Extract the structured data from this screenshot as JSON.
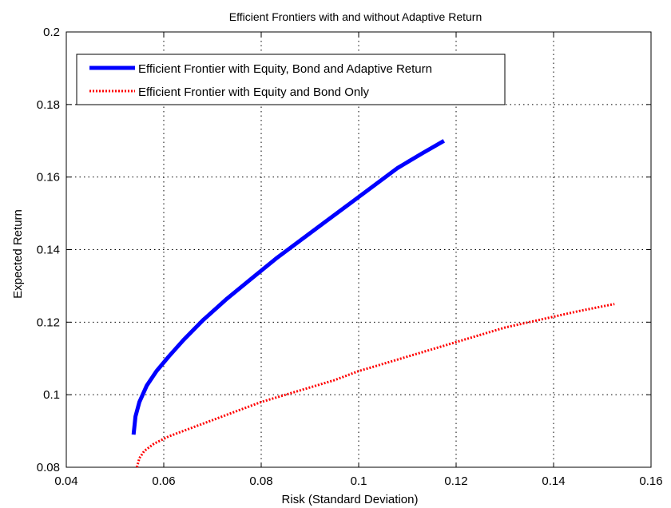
{
  "chart_data": {
    "type": "line",
    "title": "Efficient Frontiers with and without Adaptive Return",
    "xlabel": "Risk (Standard Deviation)",
    "ylabel": "Expected Return",
    "xlim": [
      0.04,
      0.16
    ],
    "ylim": [
      0.08,
      0.2
    ],
    "xticks": [
      0.04,
      0.06,
      0.08,
      0.1,
      0.12,
      0.14,
      0.16
    ],
    "xtick_labels": [
      "0.04",
      "0.06",
      "0.08",
      "0.1",
      "0.12",
      "0.14",
      "0.16"
    ],
    "yticks": [
      0.08,
      0.1,
      0.12,
      0.14,
      0.16,
      0.18,
      0.2
    ],
    "ytick_labels": [
      "0.08",
      "0.1",
      "0.12",
      "0.14",
      "0.16",
      "0.18",
      "0.2"
    ],
    "grid": true,
    "legend_position": "top-left",
    "series": [
      {
        "name": "Efficient Frontier with Equity, Bond and Adaptive Return",
        "color": "#0000ff",
        "style": "solid",
        "x": [
          0.0538,
          0.0542,
          0.055,
          0.0565,
          0.0585,
          0.061,
          0.064,
          0.068,
          0.073,
          0.078,
          0.083,
          0.088,
          0.093,
          0.098,
          0.103,
          0.108,
          0.113,
          0.1175
        ],
        "y": [
          0.089,
          0.094,
          0.098,
          0.1025,
          0.1065,
          0.1105,
          0.115,
          0.1205,
          0.1265,
          0.132,
          0.1375,
          0.1425,
          0.1475,
          0.1525,
          0.1575,
          0.1625,
          0.1665,
          0.17
        ]
      },
      {
        "name": "Efficient Frontier with Equity and Bond Only",
        "color": "#ff0000",
        "style": "dotted",
        "x": [
          0.0545,
          0.055,
          0.056,
          0.058,
          0.061,
          0.065,
          0.07,
          0.075,
          0.08,
          0.085,
          0.09,
          0.095,
          0.1,
          0.105,
          0.11,
          0.115,
          0.12,
          0.125,
          0.13,
          0.135,
          0.14,
          0.145,
          0.1525
        ],
        "y": [
          0.08,
          0.0825,
          0.0845,
          0.0865,
          0.0885,
          0.0905,
          0.093,
          0.0955,
          0.098,
          0.1,
          0.102,
          0.104,
          0.1065,
          0.1085,
          0.1105,
          0.1125,
          0.1145,
          0.1165,
          0.1185,
          0.12,
          0.1215,
          0.123,
          0.125
        ]
      }
    ]
  }
}
